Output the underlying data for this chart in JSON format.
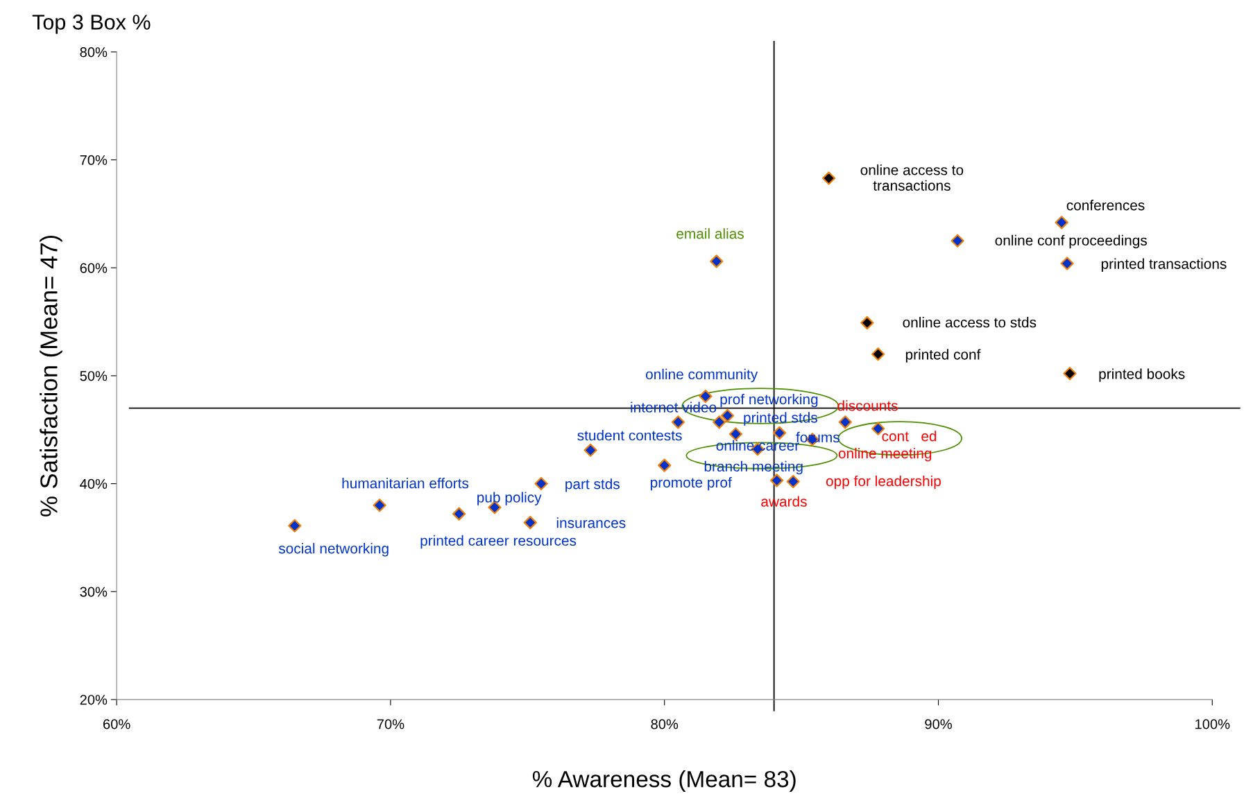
{
  "chart_data": {
    "type": "scatter",
    "title": "Top 3 Box %",
    "xlabel": "% Awareness (Mean= 83)",
    "ylabel": "% Satisfaction (Mean= 47)",
    "marker": "diamond",
    "grid": false,
    "legend": false,
    "xlim": [
      60,
      100
    ],
    "ylim": [
      20,
      80
    ],
    "xticks": [
      {
        "value": 60,
        "label": "60%"
      },
      {
        "value": 70,
        "label": "70%"
      },
      {
        "value": 80,
        "label": "80%"
      },
      {
        "value": 90,
        "label": "90%"
      },
      {
        "value": 100,
        "label": "100%"
      }
    ],
    "yticks": [
      {
        "value": 20,
        "label": "20%"
      },
      {
        "value": 30,
        "label": "30%"
      },
      {
        "value": 40,
        "label": "40%"
      },
      {
        "value": 50,
        "label": "50%"
      },
      {
        "value": 60,
        "label": "60%"
      },
      {
        "value": 70,
        "label": "70%"
      },
      {
        "value": 80,
        "label": "80%"
      }
    ],
    "series": [
      {
        "color": "#000000",
        "x": [
          86.0,
          87.4,
          87.8,
          94.8
        ],
        "values": [
          68.3,
          54.9,
          52.0,
          50.2
        ]
      },
      {
        "color": "#0033cc",
        "x": [
          94.5,
          90.7,
          94.7,
          81.9,
          81.5,
          80.5,
          82.3,
          82.6,
          84.2,
          83.4,
          82.0,
          77.3,
          80.0,
          86.6,
          87.8,
          85.4,
          84.7,
          84.1,
          69.6,
          73.8,
          75.5,
          75.1,
          72.5,
          66.5
        ],
        "values": [
          64.2,
          62.5,
          60.4,
          60.6,
          48.1,
          45.7,
          46.3,
          44.6,
          44.7,
          43.2,
          45.7,
          43.1,
          41.7,
          45.7,
          45.1,
          44.1,
          40.2,
          40.3,
          38.0,
          37.8,
          40.0,
          36.4,
          37.2,
          36.1
        ]
      }
    ],
    "ref_lines": [
      {
        "axis": "x",
        "value": 84.0,
        "color": "#000000"
      },
      {
        "axis": "y",
        "value": 47.0,
        "color": "#000000"
      }
    ],
    "annotations": [
      {
        "text": "online access to\ntransactions",
        "x": 86.0,
        "y": 68.3
      },
      {
        "text": "conferences",
        "x": 94.5,
        "y": 64.2
      },
      {
        "text": "online conf proceedings",
        "x": 90.7,
        "y": 62.5
      },
      {
        "text": "printed transactions",
        "x": 94.7,
        "y": 60.4
      },
      {
        "text": "online access to stds",
        "x": 87.4,
        "y": 54.9
      },
      {
        "text": "printed conf",
        "x": 87.8,
        "y": 52.0
      },
      {
        "text": "printed books",
        "x": 94.8,
        "y": 50.2
      },
      {
        "text": "email alias",
        "x": 81.9,
        "y": 60.6
      },
      {
        "text": "online community",
        "x": 81.5,
        "y": 48.1
      },
      {
        "text": "internet video",
        "x": 80.5,
        "y": 45.7
      },
      {
        "text": "prof networking",
        "x": 82.3,
        "y": 46.3
      },
      {
        "text": "printed stds",
        "x": 82.6,
        "y": 44.6
      },
      {
        "text": "forums",
        "x": 84.2,
        "y": 44.7
      },
      {
        "text": "online career",
        "x": 83.4,
        "y": 43.2
      },
      {
        "text": "branch meeting",
        "x": 82.0,
        "y": 45.7
      },
      {
        "text": "student contests",
        "x": 77.3,
        "y": 43.1
      },
      {
        "text": "promote prof",
        "x": 80.0,
        "y": 41.7
      },
      {
        "text": "discounts",
        "x": 86.6,
        "y": 45.7
      },
      {
        "text": "cont   ed",
        "x": 87.8,
        "y": 45.1
      },
      {
        "text": "online meeting",
        "x": 85.4,
        "y": 44.1
      },
      {
        "text": "opp for leadership",
        "x": 84.7,
        "y": 40.2
      },
      {
        "text": "awards",
        "x": 84.1,
        "y": 40.3
      },
      {
        "text": "humanitarian efforts",
        "x": 69.6,
        "y": 38.0
      },
      {
        "text": "pub policy",
        "x": 73.8,
        "y": 37.8
      },
      {
        "text": "part stds",
        "x": 75.5,
        "y": 40.0
      },
      {
        "text": "insurances",
        "x": 75.1,
        "y": 36.4
      },
      {
        "text": "printed career resources",
        "x": 72.5,
        "y": 37.2
      },
      {
        "text": "social networking",
        "x": 66.5,
        "y": 36.1
      }
    ]
  }
}
